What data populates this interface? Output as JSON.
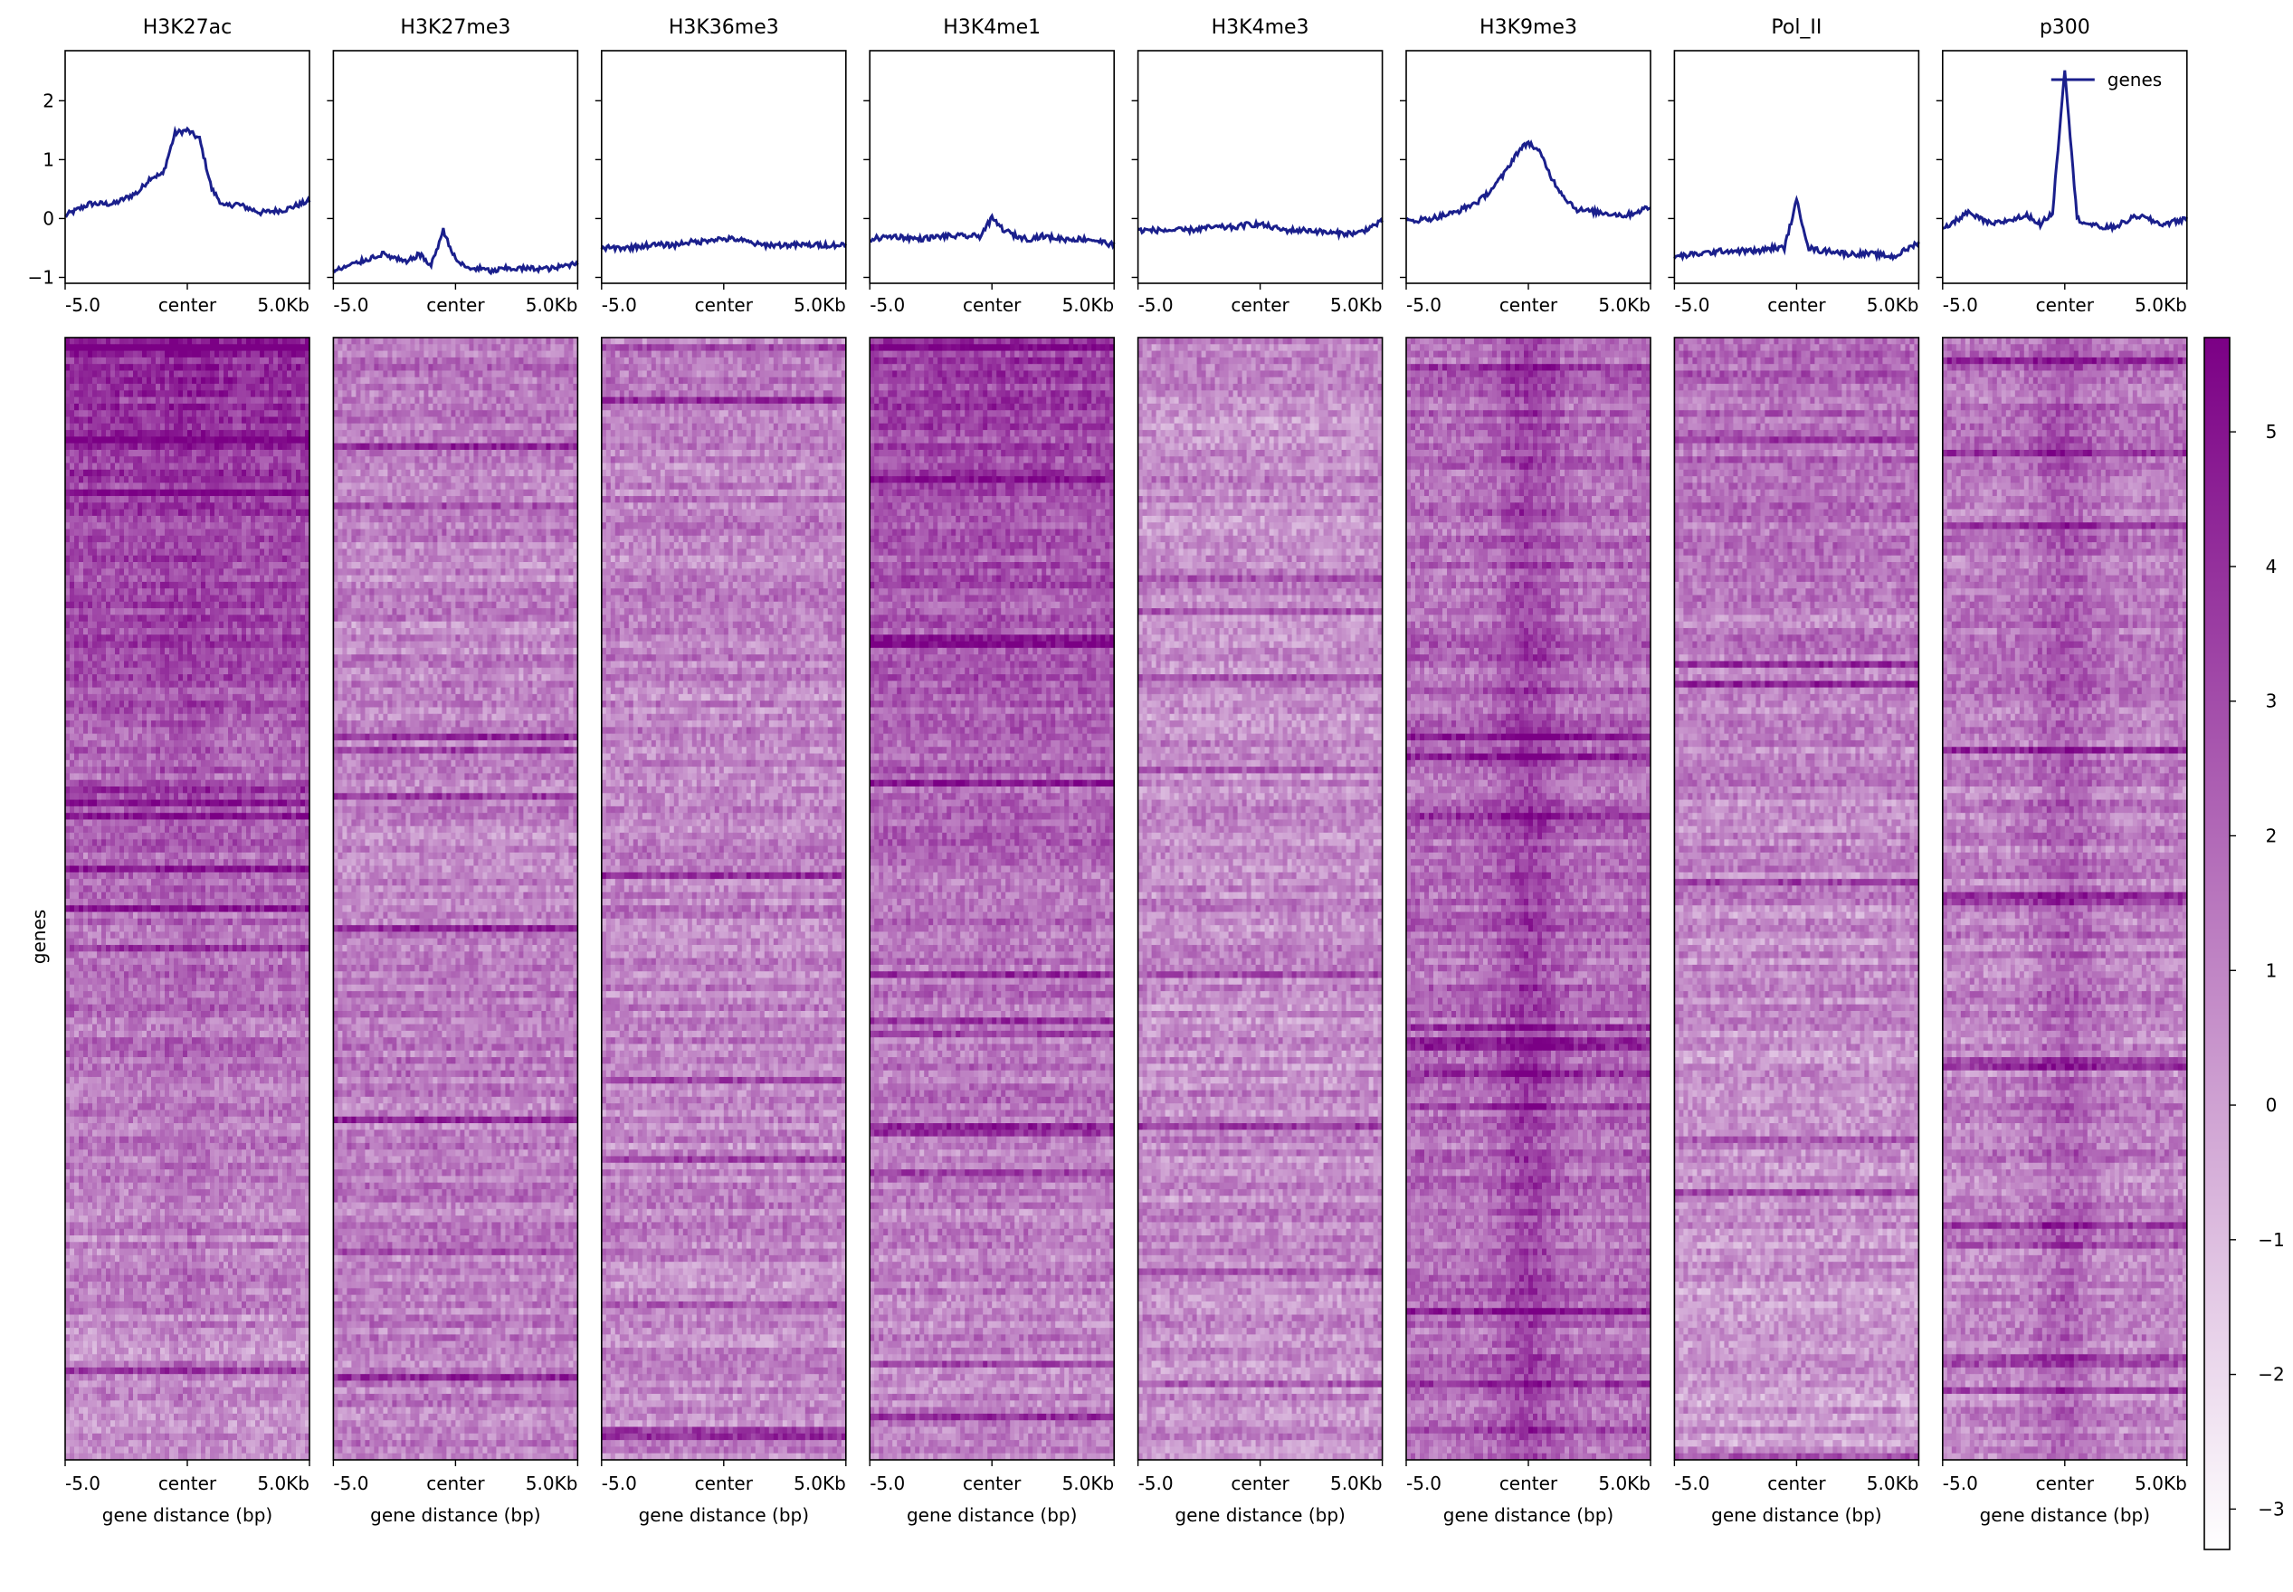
{
  "chart_data": {
    "type": "heatmap",
    "panels": [
      {
        "title": "H3K27ac"
      },
      {
        "title": "H3K27me3"
      },
      {
        "title": "H3K36me3"
      },
      {
        "title": "H3K4me1"
      },
      {
        "title": "H3K4me3"
      },
      {
        "title": "H3K9me3"
      },
      {
        "title": "Pol_II"
      },
      {
        "title": "p300"
      }
    ],
    "profile": {
      "ylim": [
        -1.1,
        2.85
      ],
      "yticks": [
        "2",
        "1",
        "0",
        "−1"
      ],
      "ytick_values": [
        2,
        1,
        0,
        -1
      ],
      "series_name": "genes",
      "legend_position": "top-right",
      "line_color": "#1a1f8c",
      "x": [
        -5000,
        -4000,
        -3000,
        -2000,
        -1500,
        -1000,
        -500,
        0,
        500,
        1000,
        1500,
        2000,
        3000,
        4000,
        5000
      ],
      "values": [
        [
          0.05,
          0.25,
          0.25,
          0.45,
          0.7,
          0.75,
          1.45,
          1.5,
          1.35,
          0.5,
          0.2,
          0.25,
          0.1,
          0.15,
          0.3
        ],
        [
          -0.9,
          -0.75,
          -0.6,
          -0.75,
          -0.6,
          -0.8,
          -0.2,
          -0.7,
          -0.85,
          -0.85,
          -0.9,
          -0.85,
          -0.85,
          -0.85,
          -0.75
        ],
        [
          -0.5,
          -0.5,
          -0.45,
          -0.45,
          -0.4,
          -0.4,
          -0.35,
          -0.35,
          -0.35,
          -0.4,
          -0.45,
          -0.45,
          -0.45,
          -0.45,
          -0.45
        ],
        [
          -0.35,
          -0.3,
          -0.35,
          -0.3,
          -0.3,
          -0.3,
          -0.3,
          0.0,
          -0.2,
          -0.3,
          -0.35,
          -0.3,
          -0.35,
          -0.35,
          -0.45
        ],
        [
          -0.2,
          -0.2,
          -0.2,
          -0.15,
          -0.15,
          -0.15,
          -0.1,
          -0.1,
          -0.15,
          -0.2,
          -0.2,
          -0.2,
          -0.25,
          -0.25,
          -0.05
        ],
        [
          -0.05,
          0.0,
          0.1,
          0.3,
          0.5,
          0.75,
          1.1,
          1.3,
          1.1,
          0.65,
          0.35,
          0.15,
          0.1,
          0.05,
          0.2
        ],
        [
          -0.65,
          -0.6,
          -0.55,
          -0.55,
          -0.55,
          -0.5,
          -0.5,
          0.3,
          -0.5,
          -0.55,
          -0.55,
          -0.6,
          -0.6,
          -0.65,
          -0.4
        ],
        [
          -0.2,
          0.1,
          -0.1,
          0.0,
          0.05,
          -0.1,
          0.1,
          2.55,
          0.0,
          -0.1,
          -0.15,
          -0.15,
          0.05,
          -0.1,
          0.0
        ]
      ]
    },
    "heatmap": {
      "row_label": "genes",
      "xlabel": "gene distance (bp)",
      "xticks": [
        "-5.0",
        "center",
        "5.0Kb"
      ],
      "colorbar": {
        "vmin": -3.3,
        "vmax": 5.7,
        "ticks": [
          "5",
          "4",
          "3",
          "2",
          "1",
          "0",
          "−1",
          "−2",
          "−3"
        ],
        "tick_values": [
          5,
          4,
          3,
          2,
          1,
          0,
          -1,
          -2,
          -3
        ],
        "color_low": "#ffffff",
        "color_high": "#7b0085"
      },
      "mean_intensity": [
        [
          4.2,
          3.2,
          2.3,
          1.6,
          1.1,
          0.6
        ],
        [
          1.6,
          1.0,
          1.1,
          1.3,
          1.2,
          1.0
        ],
        [
          1.3,
          1.2,
          1.0,
          1.1,
          0.9,
          0.8
        ],
        [
          3.4,
          2.6,
          2.1,
          1.6,
          1.1,
          0.8
        ],
        [
          0.8,
          0.8,
          0.8,
          0.8,
          0.8,
          0.8
        ],
        [
          1.9,
          1.9,
          1.9,
          1.9,
          1.8,
          1.7
        ],
        [
          2.2,
          1.4,
          1.0,
          0.7,
          0.6,
          0.4
        ],
        [
          1.6,
          1.4,
          1.2,
          1.1,
          1.0,
          0.9
        ]
      ],
      "center_signal": [
        0.4,
        0.1,
        0.0,
        0.2,
        0.0,
        1.6,
        0.1,
        1.2
      ]
    }
  }
}
